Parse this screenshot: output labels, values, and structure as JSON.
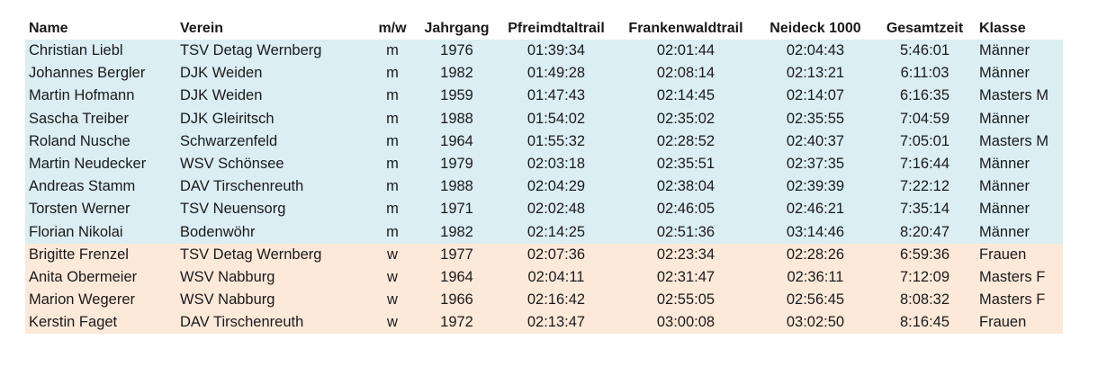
{
  "table": {
    "headers": {
      "name": "Name",
      "verein": "Verein",
      "mw": "m/w",
      "jahrgang": "Jahrgang",
      "trail1": "Pfreimdtaltrail",
      "trail2": "Frankenwaldtrail",
      "trail3": "Neideck 1000",
      "total": "Gesamtzeit",
      "klasse": "Klasse"
    },
    "rows": [
      {
        "name": "Christian Liebl",
        "verein": "TSV Detag Wernberg",
        "mw": "m",
        "jahrgang": "1976",
        "trail1": "01:39:34",
        "trail2": "02:01:44",
        "trail3": "02:04:43",
        "total": "5:46:01",
        "klasse": "Männer"
      },
      {
        "name": "Johannes Bergler",
        "verein": "DJK Weiden",
        "mw": "m",
        "jahrgang": "1982",
        "trail1": "01:49:28",
        "trail2": "02:08:14",
        "trail3": "02:13:21",
        "total": "6:11:03",
        "klasse": "Männer"
      },
      {
        "name": "Martin Hofmann",
        "verein": "DJK Weiden",
        "mw": "m",
        "jahrgang": "1959",
        "trail1": "01:47:43",
        "trail2": "02:14:45",
        "trail3": "02:14:07",
        "total": "6:16:35",
        "klasse": "Masters M"
      },
      {
        "name": "Sascha Treiber",
        "verein": "DJK Gleiritsch",
        "mw": "m",
        "jahrgang": "1988",
        "trail1": "01:54:02",
        "trail2": "02:35:02",
        "trail3": "02:35:55",
        "total": "7:04:59",
        "klasse": "Männer"
      },
      {
        "name": "Roland Nusche",
        "verein": "Schwarzenfeld",
        "mw": "m",
        "jahrgang": "1964",
        "trail1": "01:55:32",
        "trail2": "02:28:52",
        "trail3": "02:40:37",
        "total": "7:05:01",
        "klasse": "Masters M"
      },
      {
        "name": "Martin Neudecker",
        "verein": "WSV Schönsee",
        "mw": "m",
        "jahrgang": "1979",
        "trail1": "02:03:18",
        "trail2": "02:35:51",
        "trail3": "02:37:35",
        "total": "7:16:44",
        "klasse": "Männer"
      },
      {
        "name": "Andreas Stamm",
        "verein": "DAV Tirschenreuth",
        "mw": "m",
        "jahrgang": "1988",
        "trail1": "02:04:29",
        "trail2": "02:38:04",
        "trail3": "02:39:39",
        "total": "7:22:12",
        "klasse": "Männer"
      },
      {
        "name": "Torsten Werner",
        "verein": "TSV Neuensorg",
        "mw": "m",
        "jahrgang": "1971",
        "trail1": "02:02:48",
        "trail2": "02:46:05",
        "trail3": "02:46:21",
        "total": "7:35:14",
        "klasse": "Männer"
      },
      {
        "name": "Florian Nikolai",
        "verein": "Bodenwöhr",
        "mw": "m",
        "jahrgang": "1982",
        "trail1": "02:14:25",
        "trail2": "02:51:36",
        "trail3": "03:14:46",
        "total": "8:20:47",
        "klasse": "Männer"
      },
      {
        "name": "Brigitte Frenzel",
        "verein": "TSV Detag Wernberg",
        "mw": "w",
        "jahrgang": "1977",
        "trail1": "02:07:36",
        "trail2": "02:23:34",
        "trail3": "02:28:26",
        "total": "6:59:36",
        "klasse": "Frauen"
      },
      {
        "name": "Anita Obermeier",
        "verein": "WSV Nabburg",
        "mw": "w",
        "jahrgang": "1964",
        "trail1": "02:04:11",
        "trail2": "02:31:47",
        "trail3": "02:36:11",
        "total": "7:12:09",
        "klasse": "Masters F"
      },
      {
        "name": "Marion Wegerer",
        "verein": "WSV Nabburg",
        "mw": "w",
        "jahrgang": "1966",
        "trail1": "02:16:42",
        "trail2": "02:55:05",
        "trail3": "02:56:45",
        "total": "8:08:32",
        "klasse": "Masters F"
      },
      {
        "name": "Kerstin Faget",
        "verein": "DAV Tirschenreuth",
        "mw": "w",
        "jahrgang": "1972",
        "trail1": "02:13:47",
        "trail2": "03:00:08",
        "trail3": "03:02:50",
        "total": "8:16:45",
        "klasse": "Frauen"
      }
    ]
  },
  "colors": {
    "men_row_background": "#daeef3",
    "women_row_background": "#fde9d9",
    "text": "#1a1a1a"
  }
}
